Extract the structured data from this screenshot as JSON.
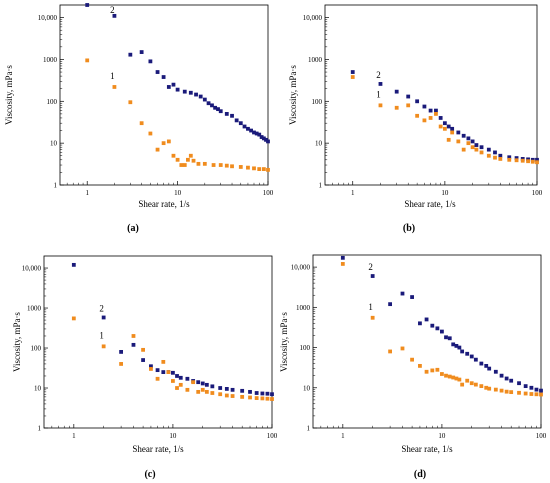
{
  "colors": {
    "series_2": "#1a1a7a",
    "series_1": "#f08c1e",
    "axis": "#000000"
  },
  "chart_data": [
    {
      "type": "scatter",
      "panel_label": "(a)",
      "xlabel": "Shear rate, 1/s",
      "ylabel": "Viscosity, mPa·s",
      "x_scale": "log",
      "y_scale": "log",
      "xlim": [
        0.5,
        100
      ],
      "ylim": [
        1,
        20000
      ],
      "x_ticks": [
        "1",
        "10",
        "100"
      ],
      "y_ticks": [
        "1",
        "10",
        "100",
        "1000",
        "10,000"
      ],
      "grid": false,
      "series": [
        {
          "name": "2",
          "x": [
            1,
            2,
            3,
            4,
            5,
            6,
            7,
            8,
            9,
            10,
            12,
            14,
            16,
            18,
            20,
            22,
            24,
            26,
            28,
            30,
            35,
            40,
            45,
            50,
            55,
            60,
            65,
            70,
            75,
            80,
            85,
            90,
            95,
            100
          ],
          "y": [
            20000,
            11000,
            1300,
            1500,
            900,
            500,
            380,
            220,
            250,
            190,
            170,
            160,
            145,
            130,
            110,
            90,
            80,
            70,
            65,
            58,
            50,
            45,
            35,
            30,
            25,
            22,
            20,
            18,
            17,
            16,
            14,
            13,
            12,
            11
          ]
        },
        {
          "name": "1",
          "x": [
            1,
            2,
            3,
            4,
            5,
            6,
            7,
            8,
            9,
            10,
            11,
            12,
            13,
            14,
            15,
            17,
            20,
            25,
            30,
            35,
            40,
            50,
            60,
            70,
            80,
            90,
            100
          ],
          "y": [
            950,
            220,
            95,
            30,
            17,
            7,
            10,
            11,
            5,
            4,
            3,
            3,
            4,
            5,
            3.8,
            3.2,
            3.2,
            3.0,
            3.0,
            2.9,
            2.8,
            2.7,
            2.6,
            2.5,
            2.4,
            2.4,
            2.3
          ]
        }
      ]
    },
    {
      "type": "scatter",
      "panel_label": "(b)",
      "xlabel": "Shear rate, 1/s",
      "ylabel": "Viscosity, mPa·s",
      "x_scale": "log",
      "y_scale": "log",
      "xlim": [
        0.5,
        100
      ],
      "ylim": [
        1,
        20000
      ],
      "x_ticks": [
        "1",
        "10",
        "100"
      ],
      "y_ticks": [
        "1",
        "10",
        "100",
        "1000",
        "10,000"
      ],
      "grid": false,
      "series": [
        {
          "name": "2",
          "x": [
            1,
            2,
            3,
            4,
            5,
            6,
            7,
            8,
            9,
            10,
            11,
            12,
            14,
            16,
            18,
            20,
            22,
            25,
            30,
            35,
            40,
            50,
            60,
            70,
            80,
            90,
            100
          ],
          "y": [
            500,
            260,
            170,
            130,
            100,
            75,
            60,
            60,
            40,
            30,
            25,
            22,
            18,
            15,
            13,
            11,
            9,
            8,
            7,
            6,
            5,
            4.6,
            4.4,
            4.2,
            4.1,
            4.0,
            4.0
          ]
        },
        {
          "name": "1",
          "x": [
            1,
            2,
            3,
            4,
            5,
            6,
            7,
            8,
            9,
            10,
            11,
            12,
            14,
            16,
            18,
            20,
            22,
            25,
            30,
            35,
            40,
            50,
            60,
            70,
            80,
            90,
            100
          ],
          "y": [
            380,
            80,
            70,
            80,
            45,
            35,
            40,
            50,
            25,
            22,
            12,
            18,
            11,
            7,
            10,
            8,
            7,
            6,
            5,
            4.5,
            4.2,
            4.0,
            3.9,
            3.8,
            3.7,
            3.6,
            3.5
          ]
        }
      ]
    },
    {
      "type": "scatter",
      "panel_label": "(c)",
      "xlabel": "Shear rate, 1/s",
      "ylabel": "Viscosity, mPa·s",
      "x_scale": "log",
      "y_scale": "log",
      "xlim": [
        0.5,
        100
      ],
      "ylim": [
        1,
        20000
      ],
      "x_ticks": [
        "1",
        "10",
        "100"
      ],
      "y_ticks": [
        "1",
        "10",
        "100",
        "1000",
        "10,000"
      ],
      "grid": false,
      "series": [
        {
          "name": "2",
          "x": [
            1,
            2,
            3,
            4,
            5,
            6,
            7,
            8,
            9,
            10,
            11,
            12,
            14,
            16,
            18,
            20,
            22,
            25,
            30,
            35,
            40,
            50,
            60,
            70,
            80,
            90,
            100
          ],
          "y": [
            12000,
            580,
            80,
            120,
            50,
            35,
            28,
            25,
            25,
            24,
            20,
            18,
            17,
            15,
            14,
            13,
            12,
            11,
            10,
            9.5,
            9,
            8.5,
            8,
            7.5,
            7.3,
            7.2,
            7
          ]
        },
        {
          "name": "1",
          "x": [
            1,
            2,
            3,
            4,
            5,
            6,
            7,
            8,
            9,
            10,
            11,
            12,
            14,
            16,
            18,
            20,
            22,
            25,
            30,
            35,
            40,
            50,
            60,
            70,
            80,
            90,
            100
          ],
          "y": [
            550,
            110,
            40,
            200,
            90,
            30,
            17,
            45,
            25,
            15,
            10,
            12,
            9,
            14,
            8,
            9,
            8,
            7.5,
            7,
            6.5,
            6.3,
            6,
            5.8,
            5.6,
            5.5,
            5.4,
            5.3
          ]
        }
      ]
    },
    {
      "type": "scatter",
      "panel_label": "(d)",
      "xlabel": "Shear rate, 1/s",
      "ylabel": "Viscosity, mPa·s",
      "x_scale": "log",
      "y_scale": "log",
      "xlim": [
        0.5,
        100
      ],
      "ylim": [
        1,
        20000
      ],
      "x_ticks": [
        "1",
        "10",
        "100"
      ],
      "y_ticks": [
        "1",
        "10",
        "100",
        "1000",
        "10,000"
      ],
      "grid": false,
      "series": [
        {
          "name": "2",
          "x": [
            1,
            2,
            3,
            4,
            5,
            6,
            7,
            8,
            9,
            10,
            11,
            12,
            13,
            14,
            15,
            16,
            18,
            20,
            22,
            25,
            28,
            30,
            35,
            40,
            45,
            50,
            60,
            70,
            80,
            90,
            100
          ],
          "y": [
            17000,
            6000,
            1200,
            2200,
            1800,
            400,
            500,
            350,
            300,
            250,
            180,
            170,
            120,
            110,
            100,
            80,
            70,
            60,
            50,
            40,
            35,
            30,
            25,
            20,
            17,
            15,
            13,
            11,
            10,
            9,
            8.5
          ]
        },
        {
          "name": "1",
          "x": [
            1,
            2,
            3,
            4,
            5,
            6,
            7,
            8,
            9,
            10,
            11,
            12,
            13,
            14,
            15,
            16,
            18,
            20,
            22,
            25,
            28,
            30,
            35,
            40,
            45,
            50,
            60,
            70,
            80,
            90,
            100
          ],
          "y": [
            12000,
            550,
            80,
            95,
            50,
            35,
            25,
            27,
            28,
            22,
            20,
            19,
            18,
            17,
            16,
            12,
            15,
            13,
            12,
            11,
            10,
            9.5,
            9,
            8.5,
            8,
            7.8,
            7.5,
            7.2,
            7,
            6.9,
            6.8
          ]
        }
      ]
    }
  ]
}
